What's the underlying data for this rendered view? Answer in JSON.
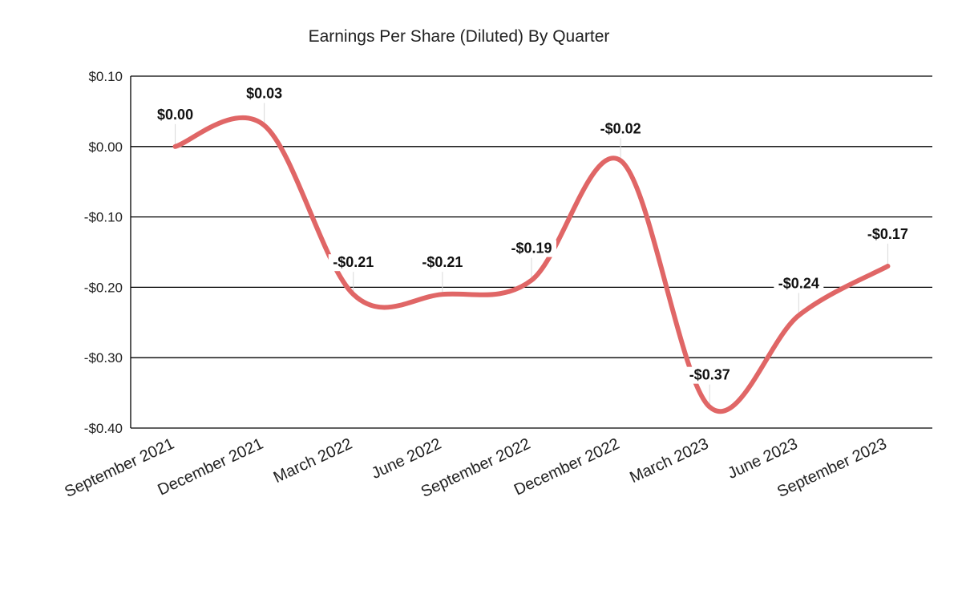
{
  "chart_data": {
    "type": "line",
    "title": "Earnings Per Share (Diluted) By Quarter",
    "xlabel": "",
    "ylabel": "",
    "categories": [
      "September 2021",
      "December 2021",
      "March 2022",
      "June 2022",
      "September 2022",
      "December 2022",
      "March 2023",
      "June 2023",
      "September 2023"
    ],
    "series": [
      {
        "name": "",
        "values": [
          0.0,
          0.03,
          -0.21,
          -0.21,
          -0.19,
          -0.02,
          -0.37,
          -0.24,
          -0.17
        ],
        "labels": [
          "$0.00",
          "$0.03",
          "-$0.21",
          "-$0.21",
          "-$0.19",
          "-$0.02",
          "-$0.37",
          "-$0.24",
          "-$0.17"
        ],
        "color": "#e06666"
      }
    ],
    "ylim": [
      -0.4,
      0.1
    ],
    "yticks": [
      0.1,
      0.0,
      -0.1,
      -0.2,
      -0.3,
      -0.4
    ],
    "ytick_labels": [
      "$0.10",
      "$0.00",
      "-$0.10",
      "-$0.20",
      "-$0.30",
      "-$0.40"
    ],
    "grid": true,
    "smooth": true,
    "legend": "none"
  }
}
